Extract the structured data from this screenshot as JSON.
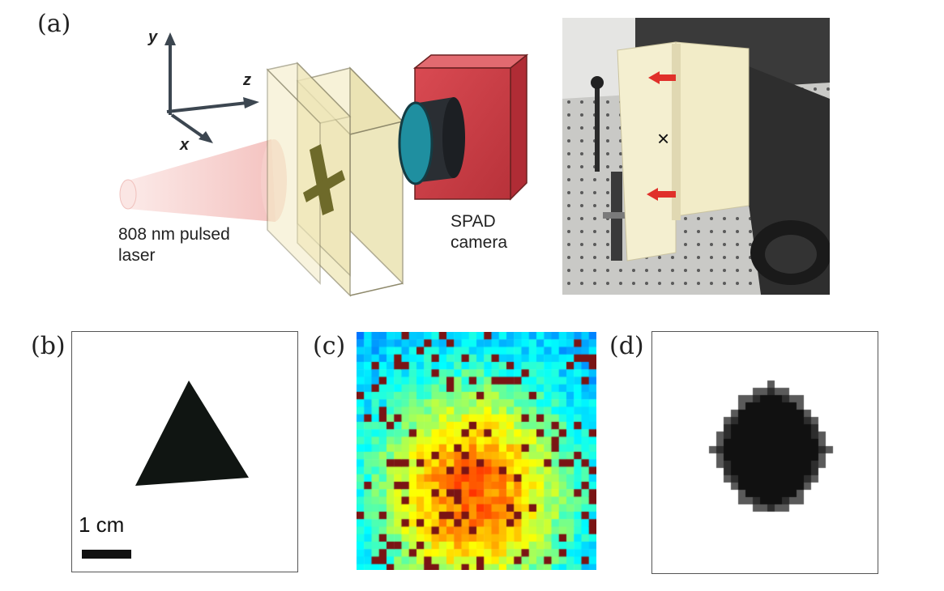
{
  "panels": {
    "a": {
      "label": "(a)",
      "axes": {
        "y": "y",
        "z": "z",
        "x": "x"
      },
      "laser_label_line1": "808 nm pulsed",
      "laser_label_line2": "laser",
      "camera_label_line1": "SPAD",
      "camera_label_line2": "camera",
      "photo_marker": "×"
    },
    "b": {
      "label": "(b)",
      "scale_bar_label": "1 cm"
    },
    "c": {
      "label": "(c)"
    },
    "d": {
      "label": "(d)"
    }
  },
  "colors": {
    "laser_beam": "#f6c9c6",
    "slab": "#efe7b8",
    "cross": "#6e6a2a",
    "camera_body": "#d84850",
    "lens": "#1f8fa0",
    "shape": "#101512",
    "photo_arrow": "#e0302a",
    "foam": "#f2ecc8"
  }
}
